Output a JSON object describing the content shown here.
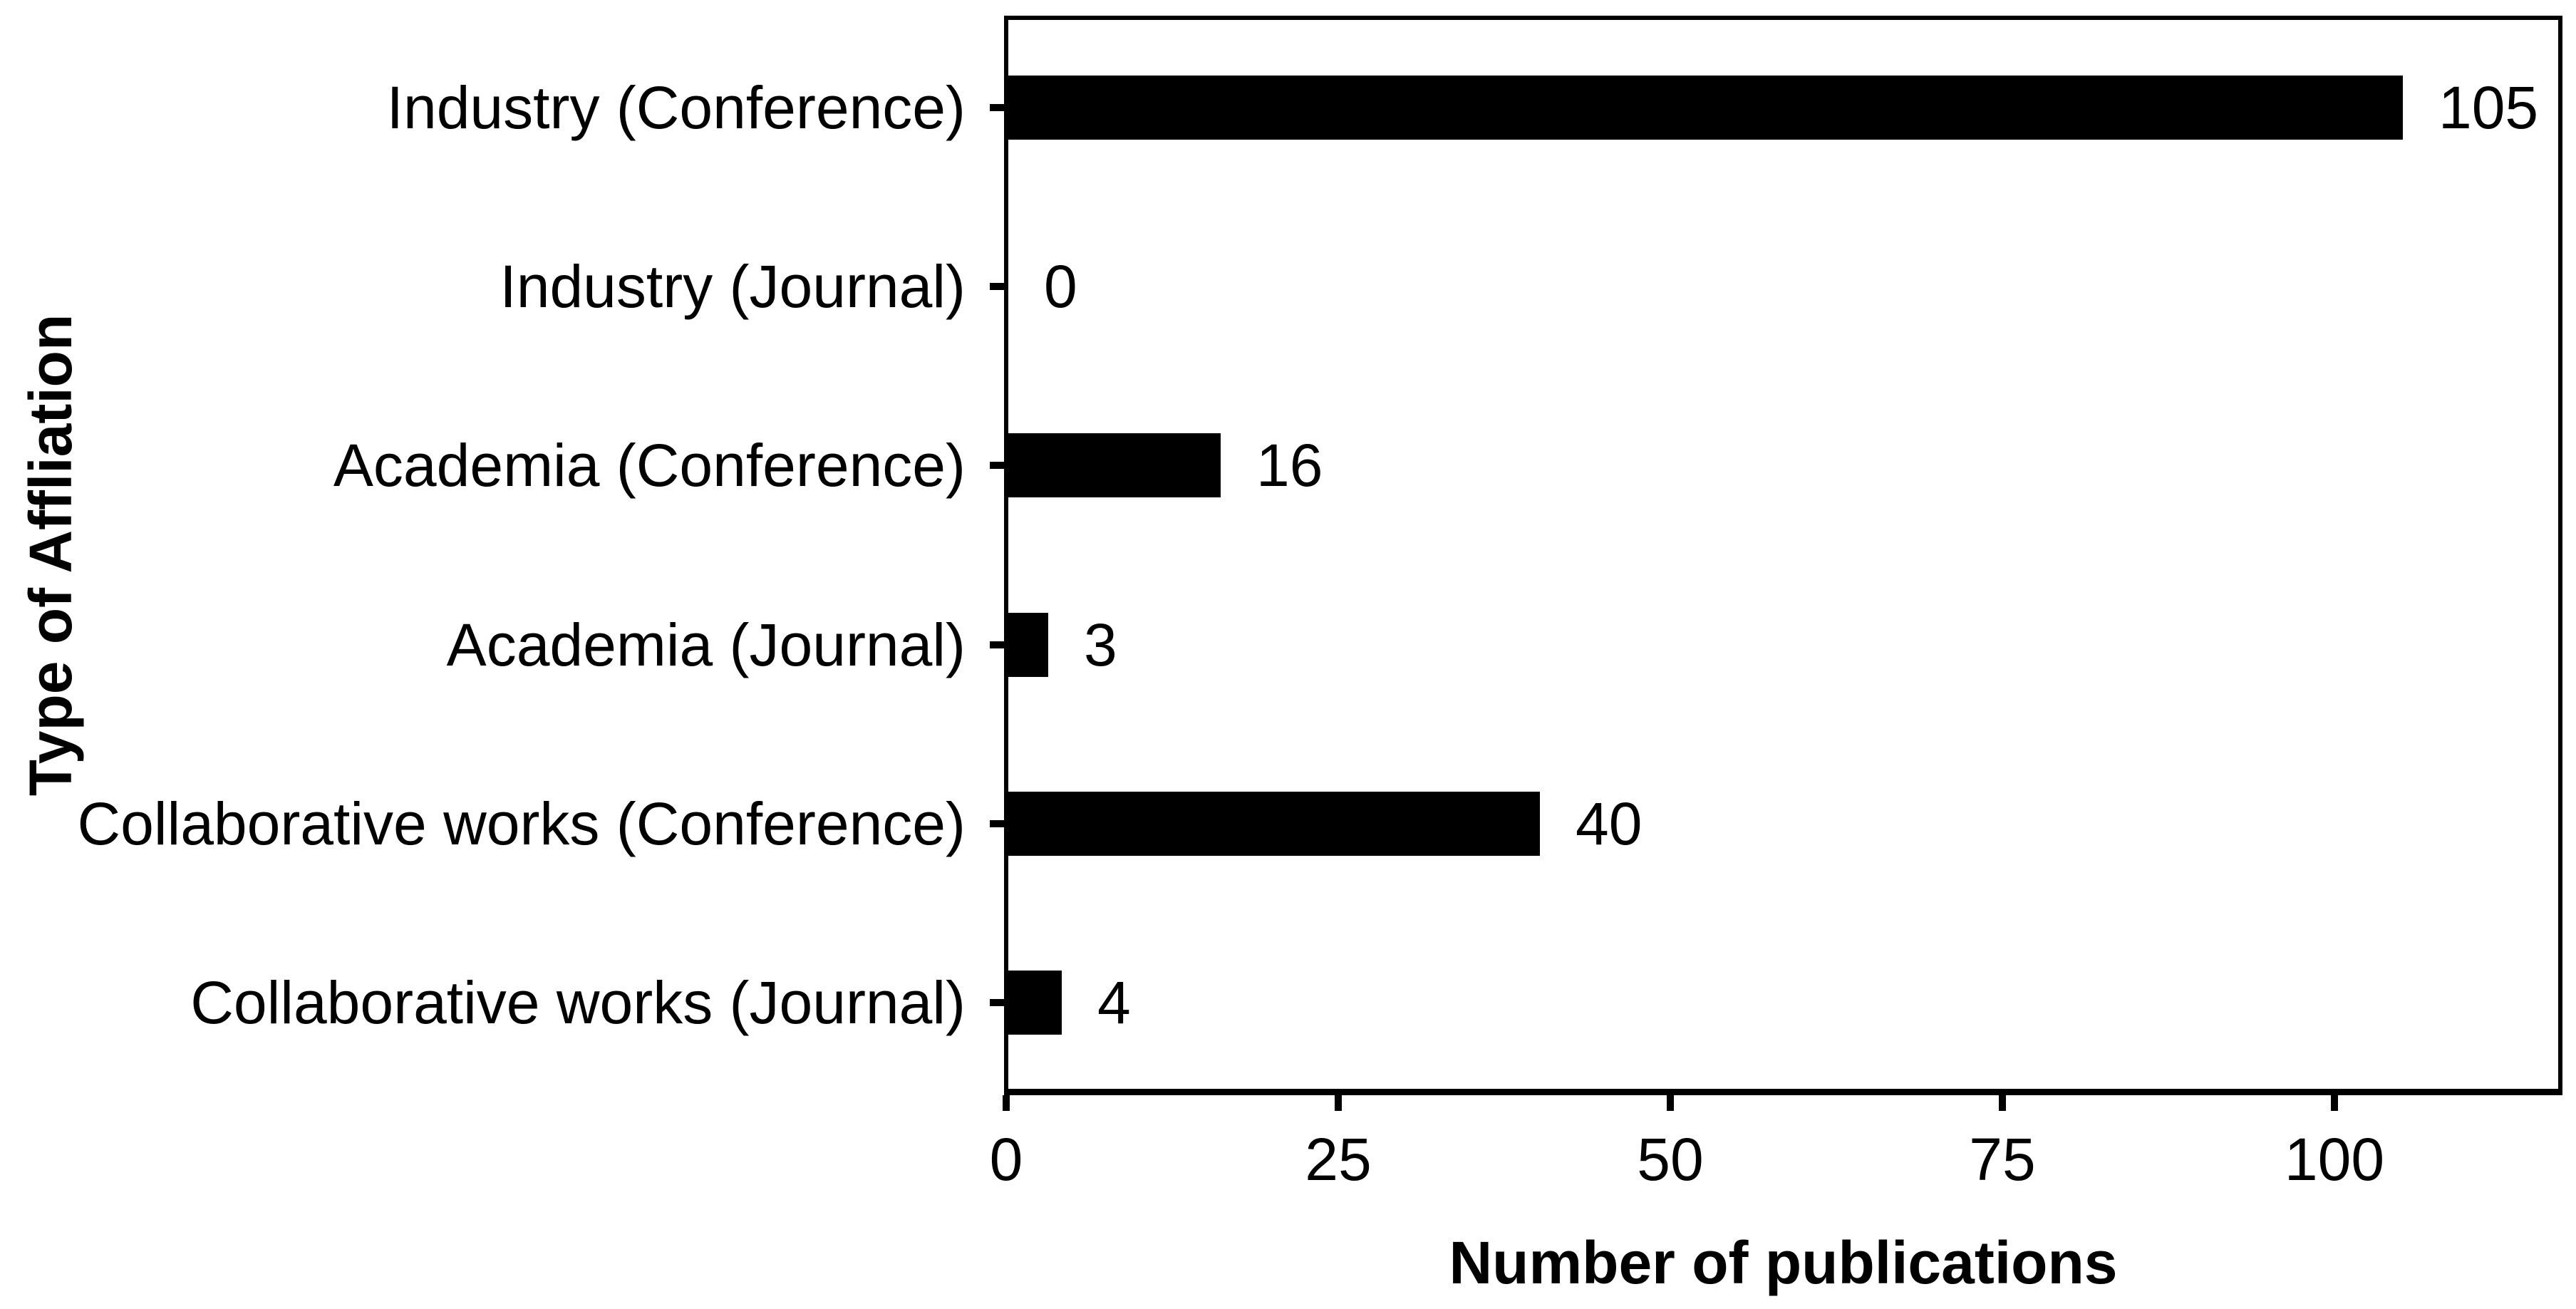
{
  "chart_data": {
    "type": "bar",
    "orientation": "horizontal",
    "title": "",
    "xlabel": "Number of publications",
    "ylabel": "Type of Affliation",
    "categories": [
      "Industry (Conference)",
      "Industry (Journal)",
      "Academia (Conference)",
      "Academia (Journal)",
      "Collaborative works (Conference)",
      "Collaborative works (Journal)"
    ],
    "values": [
      105,
      0,
      16,
      3,
      40,
      4
    ],
    "value_labels": [
      "105",
      "0",
      "16",
      "3",
      "40",
      "4"
    ],
    "x_ticks": [
      0,
      25,
      50,
      75,
      100
    ],
    "x_tick_labels": [
      "0",
      "25",
      "50",
      "75",
      "100"
    ],
    "xlim": [
      0,
      117
    ],
    "grid": "off",
    "legend": "none",
    "bar_color": "#000000",
    "text_color": "#000000",
    "background_color": "#ffffff"
  }
}
